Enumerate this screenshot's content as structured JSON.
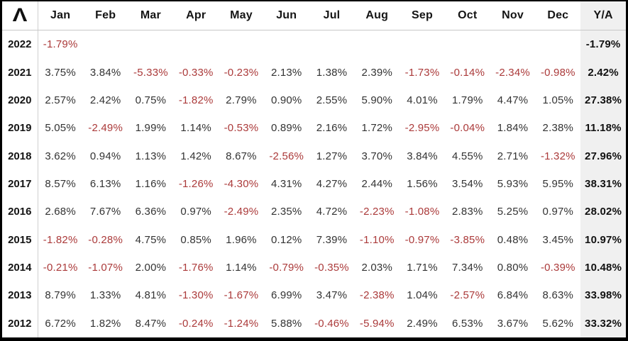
{
  "logo": {
    "glyph": "Λ",
    "icon": "caret-logo"
  },
  "colors": {
    "negative_text": "#ab3a3a",
    "positive_text": "#333333",
    "header_text": "#141414",
    "ya_column_background": "#f0f0f0",
    "gridline": "#cfcfcf",
    "outer_border": "#000000"
  },
  "table": {
    "month_columns": [
      "Jan",
      "Feb",
      "Mar",
      "Apr",
      "May",
      "Jun",
      "Jul",
      "Aug",
      "Sep",
      "Oct",
      "Nov",
      "Dec"
    ],
    "annual_column": "Y/A",
    "rows": [
      {
        "year": "2022",
        "values": [
          "-1.79%",
          "",
          "",
          "",
          "",
          "",
          "",
          "",
          "",
          "",
          "",
          ""
        ],
        "annual": "-1.79%"
      },
      {
        "year": "2021",
        "values": [
          "3.75%",
          "3.84%",
          "-5.33%",
          "-0.33%",
          "-0.23%",
          "2.13%",
          "1.38%",
          "2.39%",
          "-1.73%",
          "-0.14%",
          "-2.34%",
          "-0.98%"
        ],
        "annual": "2.42%"
      },
      {
        "year": "2020",
        "values": [
          "2.57%",
          "2.42%",
          "0.75%",
          "-1.82%",
          "2.79%",
          "0.90%",
          "2.55%",
          "5.90%",
          "4.01%",
          "1.79%",
          "4.47%",
          "1.05%"
        ],
        "annual": "27.38%"
      },
      {
        "year": "2019",
        "values": [
          "5.05%",
          "-2.49%",
          "1.99%",
          "1.14%",
          "-0.53%",
          "0.89%",
          "2.16%",
          "1.72%",
          "-2.95%",
          "-0.04%",
          "1.84%",
          "2.38%"
        ],
        "annual": "11.18%"
      },
      {
        "year": "2018",
        "values": [
          "3.62%",
          "0.94%",
          "1.13%",
          "1.42%",
          "8.67%",
          "-2.56%",
          "1.27%",
          "3.70%",
          "3.84%",
          "4.55%",
          "2.71%",
          "-1.32%"
        ],
        "annual": "27.96%"
      },
      {
        "year": "2017",
        "values": [
          "8.57%",
          "6.13%",
          "1.16%",
          "-1.26%",
          "-4.30%",
          "4.31%",
          "4.27%",
          "2.44%",
          "1.56%",
          "3.54%",
          "5.93%",
          "5.95%"
        ],
        "annual": "38.31%"
      },
      {
        "year": "2016",
        "values": [
          "2.68%",
          "7.67%",
          "6.36%",
          "0.97%",
          "-2.49%",
          "2.35%",
          "4.72%",
          "-2.23%",
          "-1.08%",
          "2.83%",
          "5.25%",
          "0.97%"
        ],
        "annual": "28.02%"
      },
      {
        "year": "2015",
        "values": [
          "-1.82%",
          "-0.28%",
          "4.75%",
          "0.85%",
          "1.96%",
          "0.12%",
          "7.39%",
          "-1.10%",
          "-0.97%",
          "-3.85%",
          "0.48%",
          "3.45%"
        ],
        "annual": "10.97%"
      },
      {
        "year": "2014",
        "values": [
          "-0.21%",
          "-1.07%",
          "2.00%",
          "-1.76%",
          "1.14%",
          "-0.79%",
          "-0.35%",
          "2.03%",
          "1.71%",
          "7.34%",
          "0.80%",
          "-0.39%"
        ],
        "annual": "10.48%"
      },
      {
        "year": "2013",
        "values": [
          "8.79%",
          "1.33%",
          "4.81%",
          "-1.30%",
          "-1.67%",
          "6.99%",
          "3.47%",
          "-2.38%",
          "1.04%",
          "-2.57%",
          "6.84%",
          "8.63%"
        ],
        "annual": "33.98%"
      },
      {
        "year": "2012",
        "values": [
          "6.72%",
          "1.82%",
          "8.47%",
          "-0.24%",
          "-1.24%",
          "5.88%",
          "-0.46%",
          "-5.94%",
          "2.49%",
          "6.53%",
          "3.67%",
          "5.62%"
        ],
        "annual": "33.32%"
      }
    ]
  }
}
